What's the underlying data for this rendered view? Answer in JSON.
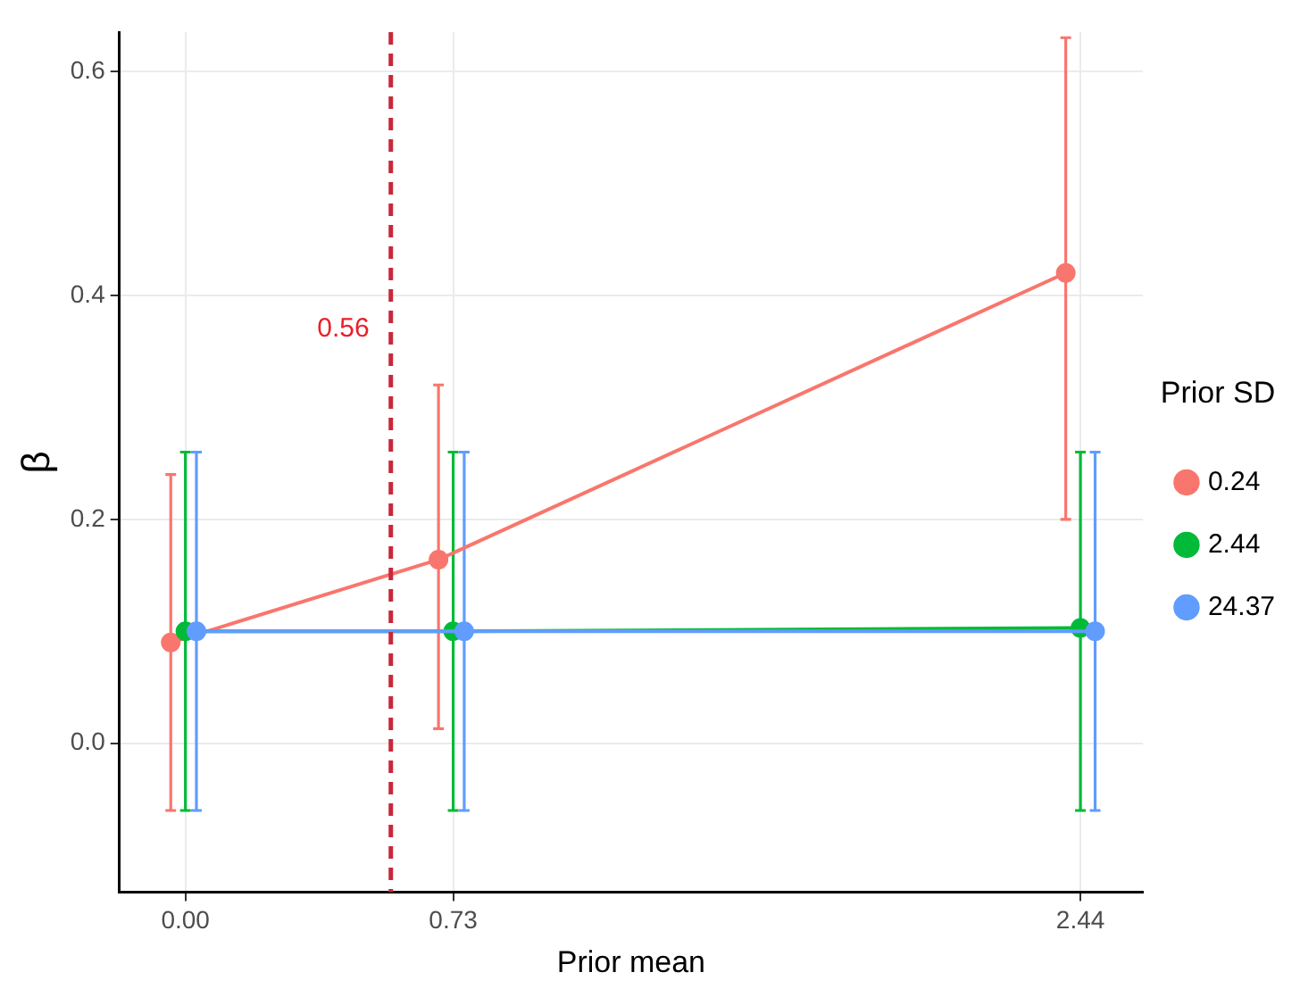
{
  "chart_data": {
    "type": "line",
    "xlabel": "Prior mean",
    "ylabel": "β",
    "legend_title": "Prior SD",
    "legend": "right",
    "grid": true,
    "marker": "circle",
    "line_style": "solid",
    "xlim": [
      -0.18,
      2.61
    ],
    "xticks": [
      {
        "value": 0,
        "label": "0.00"
      },
      {
        "value": 0.73,
        "label": "0.73"
      },
      {
        "value": 2.44,
        "label": "2.44"
      }
    ],
    "ylim": [
      -0.133,
      0.635
    ],
    "yticks": [
      {
        "value": 0,
        "label": "0.0"
      },
      {
        "value": 0.2,
        "label": "0.2"
      },
      {
        "value": 0.4,
        "label": "0.4"
      },
      {
        "value": 0.6,
        "label": "0.6"
      }
    ],
    "ref_lines": [
      {
        "axis": "x",
        "value": 0.56,
        "label": "0.56",
        "color": "#c8283a",
        "line_style": "dashed"
      }
    ],
    "series": [
      {
        "name": "0.24",
        "color": "#f8766d",
        "x": [
          -0.04,
          0.69,
          2.4
        ],
        "values": [
          0.09,
          0.164,
          0.42
        ],
        "errors": [
          [
            -0.06,
            0.24
          ],
          [
            0.013,
            0.32
          ],
          [
            0.2,
            0.63
          ]
        ]
      },
      {
        "name": "2.44",
        "color": "#00ba38",
        "x": [
          0,
          0.73,
          2.44
        ],
        "values": [
          0.1,
          0.1,
          0.103
        ],
        "errors": [
          [
            -0.06,
            0.26
          ],
          [
            -0.06,
            0.26
          ],
          [
            -0.06,
            0.26
          ]
        ]
      },
      {
        "name": "24.37",
        "color": "#619cff",
        "x": [
          0.03,
          0.76,
          2.48
        ],
        "values": [
          0.1,
          0.1,
          0.1
        ],
        "errors": [
          [
            -0.06,
            0.26
          ],
          [
            -0.06,
            0.26
          ],
          [
            -0.06,
            0.26
          ]
        ]
      }
    ]
  }
}
